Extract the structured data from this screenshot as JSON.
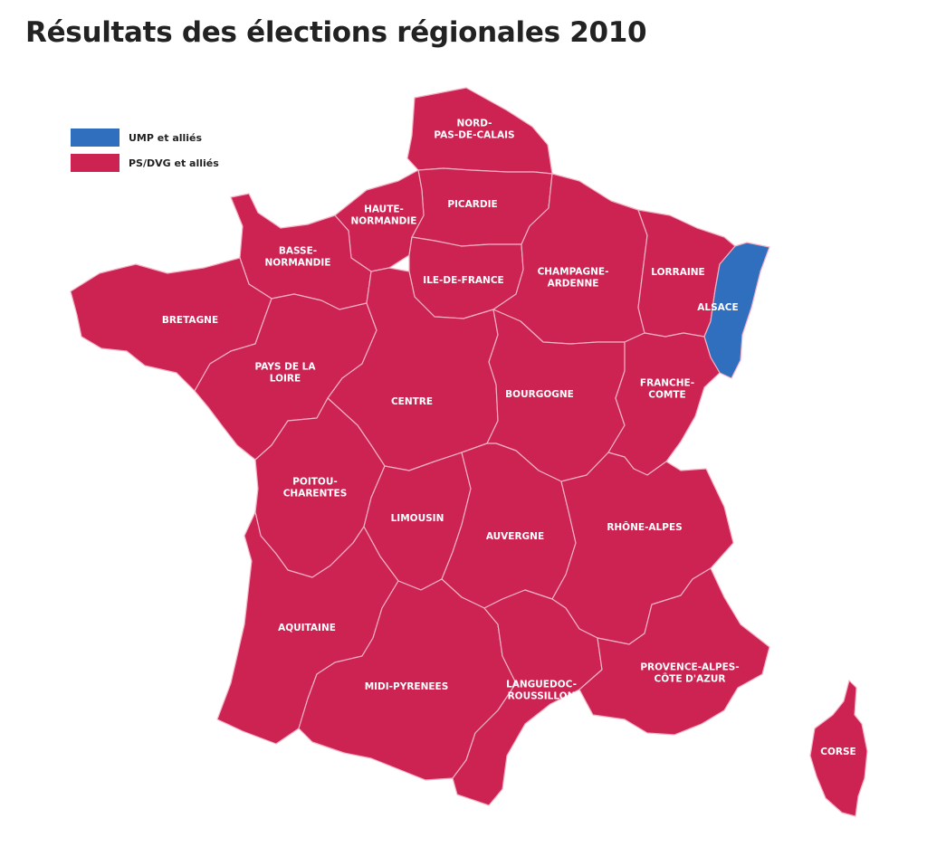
{
  "title": "Résultats des élections régionales 2010",
  "colors": {
    "ump": "#2f6fbd",
    "ps": "#cc2353",
    "border": "#f3b2c4"
  },
  "legend": [
    {
      "label": "UMP et alliés",
      "party": "ump"
    },
    {
      "label": "PS/DVG et alliés",
      "party": "ps"
    }
  ],
  "regions": [
    {
      "id": "nord-pas-de-calais",
      "lines": [
        "NORD-",
        "PAS-DE-CALAIS"
      ],
      "winner": "ps"
    },
    {
      "id": "picardie",
      "lines": [
        "PICARDIE"
      ],
      "winner": "ps"
    },
    {
      "id": "haute-normandie",
      "lines": [
        "HAUTE-",
        "NORMANDIE"
      ],
      "winner": "ps"
    },
    {
      "id": "basse-normandie",
      "lines": [
        "BASSE-",
        "NORMANDIE"
      ],
      "winner": "ps"
    },
    {
      "id": "ile-de-france",
      "lines": [
        "ILE-DE-FRANCE"
      ],
      "winner": "ps"
    },
    {
      "id": "champagne-ardenne",
      "lines": [
        "CHAMPAGNE-",
        "ARDENNE"
      ],
      "winner": "ps"
    },
    {
      "id": "lorraine",
      "lines": [
        "LORRAINE"
      ],
      "winner": "ps"
    },
    {
      "id": "alsace",
      "lines": [
        "ALSACE"
      ],
      "winner": "ump"
    },
    {
      "id": "bretagne",
      "lines": [
        "BRETAGNE"
      ],
      "winner": "ps"
    },
    {
      "id": "pays-de-la-loire",
      "lines": [
        "PAYS DE LA",
        "LOIRE"
      ],
      "winner": "ps"
    },
    {
      "id": "centre",
      "lines": [
        "CENTRE"
      ],
      "winner": "ps"
    },
    {
      "id": "bourgogne",
      "lines": [
        "BOURGOGNE"
      ],
      "winner": "ps"
    },
    {
      "id": "franche-comte",
      "lines": [
        "FRANCHE-",
        "COMTE"
      ],
      "winner": "ps"
    },
    {
      "id": "poitou-charentes",
      "lines": [
        "POITOU-",
        "CHARENTES"
      ],
      "winner": "ps"
    },
    {
      "id": "limousin",
      "lines": [
        "LIMOUSIN"
      ],
      "winner": "ps"
    },
    {
      "id": "auvergne",
      "lines": [
        "AUVERGNE"
      ],
      "winner": "ps"
    },
    {
      "id": "rhone-alpes",
      "lines": [
        "RHÔNE-ALPES"
      ],
      "winner": "ps"
    },
    {
      "id": "aquitaine",
      "lines": [
        "AQUITAINE"
      ],
      "winner": "ps"
    },
    {
      "id": "midi-pyrenees",
      "lines": [
        "MIDI-PYRENEES"
      ],
      "winner": "ps"
    },
    {
      "id": "languedoc-roussillon",
      "lines": [
        "LANGUEDOC-",
        "ROUSSILLON"
      ],
      "winner": "ps"
    },
    {
      "id": "provence-alpes-cote-dazur",
      "lines": [
        "PROVENCE-ALPES-",
        "CÔTE D'AZUR"
      ],
      "winner": "ps"
    },
    {
      "id": "corse",
      "lines": [
        "CORSE"
      ],
      "winner": "ps"
    }
  ]
}
